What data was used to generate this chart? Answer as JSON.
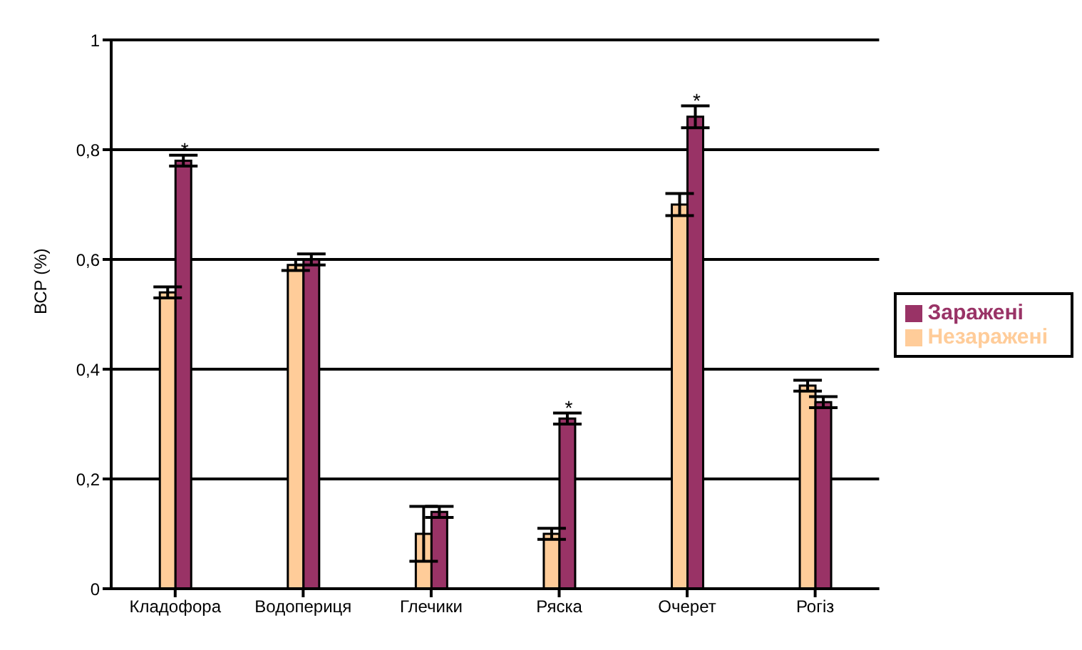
{
  "chart_data": {
    "type": "bar",
    "ylabel": "ВСР (%)",
    "categories": [
      "Кладофора",
      "Водопериця",
      "Глечики",
      "Ряска",
      "Очерет",
      "Рогіз"
    ],
    "series": [
      {
        "name": "Незаражені",
        "color": "#ffcc99",
        "values": [
          0.54,
          0.59,
          0.1,
          0.1,
          0.7,
          0.37
        ],
        "errors": [
          0.01,
          0.01,
          0.05,
          0.01,
          0.02,
          0.01
        ]
      },
      {
        "name": "Заражені",
        "color": "#993366",
        "values": [
          0.78,
          0.6,
          0.14,
          0.31,
          0.86,
          0.34
        ],
        "errors": [
          0.01,
          0.01,
          0.01,
          0.01,
          0.02,
          0.01
        ]
      }
    ],
    "ylim": [
      0,
      1
    ],
    "yticks": [
      0,
      {
        "value": 0.2,
        "label": "0,2"
      },
      {
        "value": 0.4,
        "label": "0,4"
      },
      {
        "value": 0.6,
        "label": "0,6"
      },
      {
        "value": 0.8,
        "label": "0,8"
      },
      1
    ],
    "grid": "y",
    "legend": "right",
    "annotations": [
      {
        "text": "*",
        "x": "Кладофора",
        "y": 0.8
      },
      {
        "text": "*",
        "x": "Ряска",
        "y": 0.33
      },
      {
        "text": "*",
        "x": "Очерет",
        "y": 0.89
      }
    ]
  }
}
